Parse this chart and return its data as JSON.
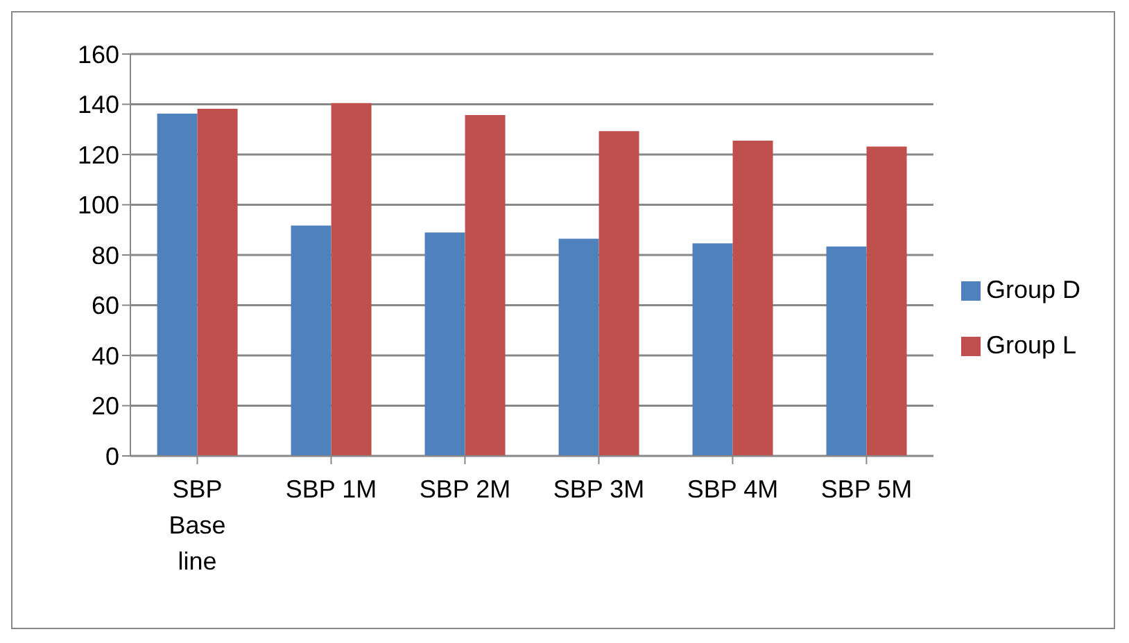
{
  "chart_data": {
    "type": "bar",
    "categories": [
      "SBP Base line",
      "SBP 1M",
      "SBP 2M",
      "SBP 3M",
      "SBP 4M",
      "SBP 5M"
    ],
    "series": [
      {
        "name": "Group D",
        "color": "#4f81bd",
        "values": [
          136.3,
          91.7,
          89,
          86.5,
          84.6,
          83.4
        ]
      },
      {
        "name": "Group L",
        "color": "#c0504d",
        "values": [
          138.2,
          140.5,
          135.7,
          129.3,
          125.5,
          123.2
        ]
      }
    ],
    "ylim": [
      0,
      160
    ],
    "yticks": [
      0,
      20,
      40,
      60,
      80,
      100,
      120,
      140,
      160
    ],
    "grid": "y",
    "legend": "right"
  }
}
